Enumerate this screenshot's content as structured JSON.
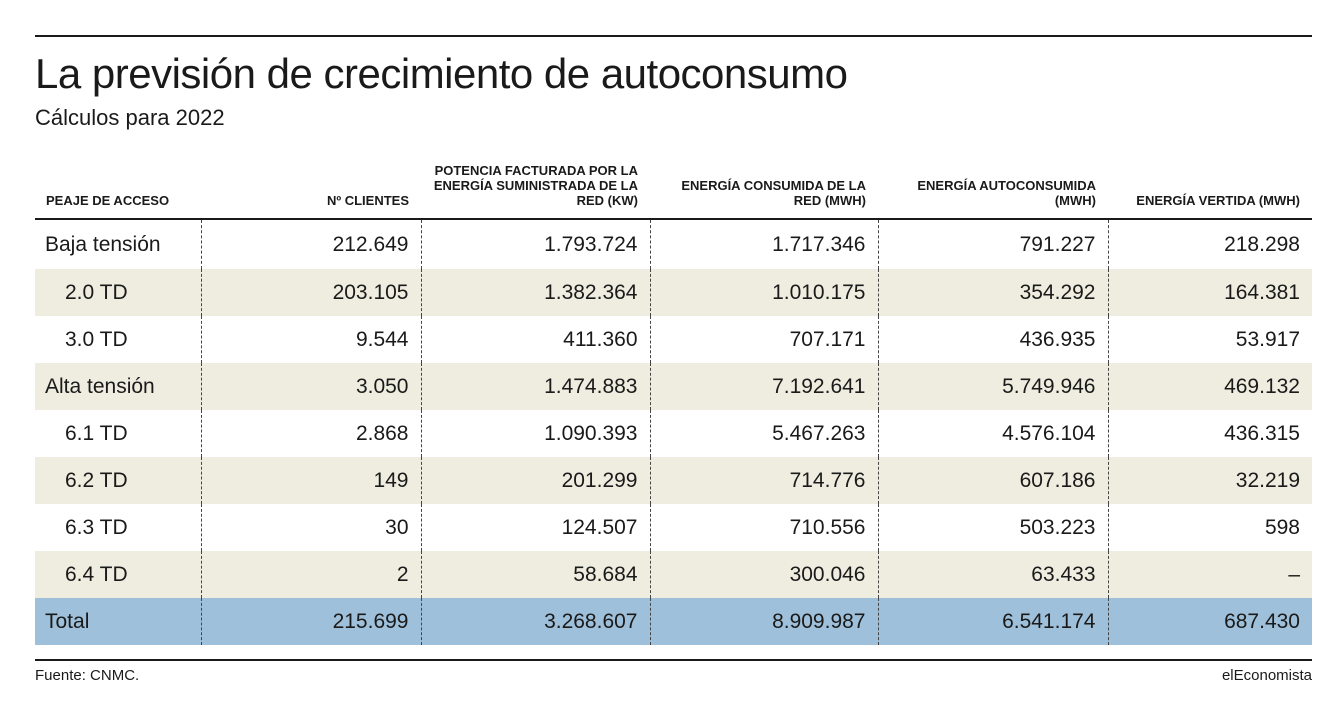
{
  "title": "La previsión de crecimiento de autoconsumo",
  "subtitle": "Cálculos para 2022",
  "columns": [
    "PEAJE DE ACCESO",
    "Nº CLIENTES",
    "POTENCIA FACTURADA POR LA ENERGÍA SUMINISTRADA DE LA RED (KW)",
    "ENERGÍA CONSUMIDA DE LA RED (MWH)",
    "ENERGÍA AUTOCONSUMIDA (MWH)",
    "ENERGÍA VERTIDA (MWH)"
  ],
  "rows": [
    [
      "Baja tensión",
      "212.649",
      "1.793.724",
      "1.717.346",
      "791.227",
      "218.298"
    ],
    [
      "2.0 TD",
      "203.105",
      "1.382.364",
      "1.010.175",
      "354.292",
      "164.381"
    ],
    [
      "3.0 TD",
      "9.544",
      "411.360",
      "707.171",
      "436.935",
      "53.917"
    ],
    [
      "Alta tensión",
      "3.050",
      "1.474.883",
      "7.192.641",
      "5.749.946",
      "469.132"
    ],
    [
      "6.1 TD",
      "2.868",
      "1.090.393",
      "5.467.263",
      "4.576.104",
      "436.315"
    ],
    [
      "6.2 TD",
      "149",
      "201.299",
      "714.776",
      "607.186",
      "32.219"
    ],
    [
      "6.3 TD",
      "30",
      "124.507",
      "710.556",
      "503.223",
      "598"
    ],
    [
      "6.4 TD",
      "2",
      "58.684",
      "300.046",
      "63.433",
      "–"
    ],
    [
      "Total",
      "215.699",
      "3.268.607",
      "8.909.987",
      "6.541.174",
      "687.430"
    ]
  ],
  "source": "Fuente: CNMC.",
  "brand": "elEconomista",
  "colors": {
    "row_shade": "#eeede0",
    "total_row": "#9fc0da",
    "text": "#1a1a1a"
  }
}
